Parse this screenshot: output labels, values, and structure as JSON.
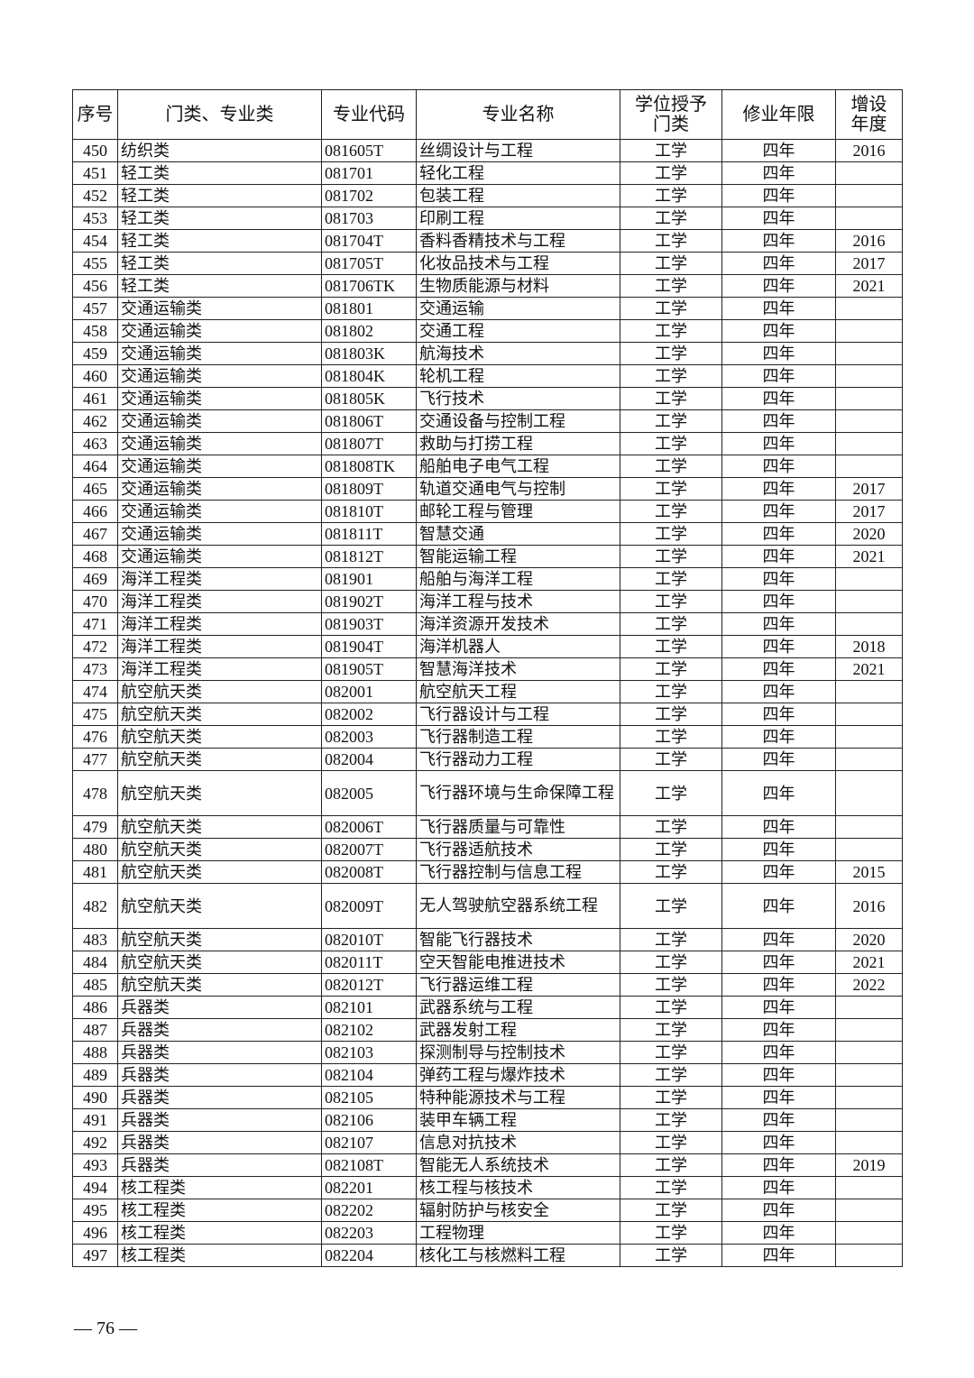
{
  "headers": [
    "序号",
    "门类、专业类",
    "专业代码",
    "专业名称",
    "学位授予门类",
    "修业年限",
    "增设年度"
  ],
  "rows": [
    [
      "450",
      "纺织类",
      "081605T",
      "丝绸设计与工程",
      "工学",
      "四年",
      "2016"
    ],
    [
      "451",
      "轻工类",
      "081701",
      "轻化工程",
      "工学",
      "四年",
      ""
    ],
    [
      "452",
      "轻工类",
      "081702",
      "包装工程",
      "工学",
      "四年",
      ""
    ],
    [
      "453",
      "轻工类",
      "081703",
      "印刷工程",
      "工学",
      "四年",
      ""
    ],
    [
      "454",
      "轻工类",
      "081704T",
      "香料香精技术与工程",
      "工学",
      "四年",
      "2016"
    ],
    [
      "455",
      "轻工类",
      "081705T",
      "化妆品技术与工程",
      "工学",
      "四年",
      "2017"
    ],
    [
      "456",
      "轻工类",
      "081706TK",
      "生物质能源与材料",
      "工学",
      "四年",
      "2021"
    ],
    [
      "457",
      "交通运输类",
      "081801",
      "交通运输",
      "工学",
      "四年",
      ""
    ],
    [
      "458",
      "交通运输类",
      "081802",
      "交通工程",
      "工学",
      "四年",
      ""
    ],
    [
      "459",
      "交通运输类",
      "081803K",
      "航海技术",
      "工学",
      "四年",
      ""
    ],
    [
      "460",
      "交通运输类",
      "081804K",
      "轮机工程",
      "工学",
      "四年",
      ""
    ],
    [
      "461",
      "交通运输类",
      "081805K",
      "飞行技术",
      "工学",
      "四年",
      ""
    ],
    [
      "462",
      "交通运输类",
      "081806T",
      "交通设备与控制工程",
      "工学",
      "四年",
      ""
    ],
    [
      "463",
      "交通运输类",
      "081807T",
      "救助与打捞工程",
      "工学",
      "四年",
      ""
    ],
    [
      "464",
      "交通运输类",
      "081808TK",
      "船舶电子电气工程",
      "工学",
      "四年",
      ""
    ],
    [
      "465",
      "交通运输类",
      "081809T",
      "轨道交通电气与控制",
      "工学",
      "四年",
      "2017"
    ],
    [
      "466",
      "交通运输类",
      "081810T",
      "邮轮工程与管理",
      "工学",
      "四年",
      "2017"
    ],
    [
      "467",
      "交通运输类",
      "081811T",
      "智慧交通",
      "工学",
      "四年",
      "2020"
    ],
    [
      "468",
      "交通运输类",
      "081812T",
      "智能运输工程",
      "工学",
      "四年",
      "2021"
    ],
    [
      "469",
      "海洋工程类",
      "081901",
      "船舶与海洋工程",
      "工学",
      "四年",
      ""
    ],
    [
      "470",
      "海洋工程类",
      "081902T",
      "海洋工程与技术",
      "工学",
      "四年",
      ""
    ],
    [
      "471",
      "海洋工程类",
      "081903T",
      "海洋资源开发技术",
      "工学",
      "四年",
      ""
    ],
    [
      "472",
      "海洋工程类",
      "081904T",
      "海洋机器人",
      "工学",
      "四年",
      "2018"
    ],
    [
      "473",
      "海洋工程类",
      "081905T",
      "智慧海洋技术",
      "工学",
      "四年",
      "2021"
    ],
    [
      "474",
      "航空航天类",
      "082001",
      "航空航天工程",
      "工学",
      "四年",
      ""
    ],
    [
      "475",
      "航空航天类",
      "082002",
      "飞行器设计与工程",
      "工学",
      "四年",
      ""
    ],
    [
      "476",
      "航空航天类",
      "082003",
      "飞行器制造工程",
      "工学",
      "四年",
      ""
    ],
    [
      "477",
      "航空航天类",
      "082004",
      "飞行器动力工程",
      "工学",
      "四年",
      ""
    ],
    [
      "478",
      "航空航天类",
      "082005",
      "飞行器环境与生命保障工程",
      "工学",
      "四年",
      ""
    ],
    [
      "479",
      "航空航天类",
      "082006T",
      "飞行器质量与可靠性",
      "工学",
      "四年",
      ""
    ],
    [
      "480",
      "航空航天类",
      "082007T",
      "飞行器适航技术",
      "工学",
      "四年",
      ""
    ],
    [
      "481",
      "航空航天类",
      "082008T",
      "飞行器控制与信息工程",
      "工学",
      "四年",
      "2015"
    ],
    [
      "482",
      "航空航天类",
      "082009T",
      "无人驾驶航空器系统工程",
      "工学",
      "四年",
      "2016"
    ],
    [
      "483",
      "航空航天类",
      "082010T",
      "智能飞行器技术",
      "工学",
      "四年",
      "2020"
    ],
    [
      "484",
      "航空航天类",
      "082011T",
      "空天智能电推进技术",
      "工学",
      "四年",
      "2021"
    ],
    [
      "485",
      "航空航天类",
      "082012T",
      "飞行器运维工程",
      "工学",
      "四年",
      "2022"
    ],
    [
      "486",
      "兵器类",
      "082101",
      "武器系统与工程",
      "工学",
      "四年",
      ""
    ],
    [
      "487",
      "兵器类",
      "082102",
      "武器发射工程",
      "工学",
      "四年",
      ""
    ],
    [
      "488",
      "兵器类",
      "082103",
      "探测制导与控制技术",
      "工学",
      "四年",
      ""
    ],
    [
      "489",
      "兵器类",
      "082104",
      "弹药工程与爆炸技术",
      "工学",
      "四年",
      ""
    ],
    [
      "490",
      "兵器类",
      "082105",
      "特种能源技术与工程",
      "工学",
      "四年",
      ""
    ],
    [
      "491",
      "兵器类",
      "082106",
      "装甲车辆工程",
      "工学",
      "四年",
      ""
    ],
    [
      "492",
      "兵器类",
      "082107",
      "信息对抗技术",
      "工学",
      "四年",
      ""
    ],
    [
      "493",
      "兵器类",
      "082108T",
      "智能无人系统技术",
      "工学",
      "四年",
      "2019"
    ],
    [
      "494",
      "核工程类",
      "082201",
      "核工程与核技术",
      "工学",
      "四年",
      ""
    ],
    [
      "495",
      "核工程类",
      "082202",
      "辐射防护与核安全",
      "工学",
      "四年",
      ""
    ],
    [
      "496",
      "核工程类",
      "082203",
      "工程物理",
      "工学",
      "四年",
      ""
    ],
    [
      "497",
      "核工程类",
      "082204",
      "核化工与核燃料工程",
      "工学",
      "四年",
      ""
    ]
  ],
  "page_number": "— 76 —"
}
